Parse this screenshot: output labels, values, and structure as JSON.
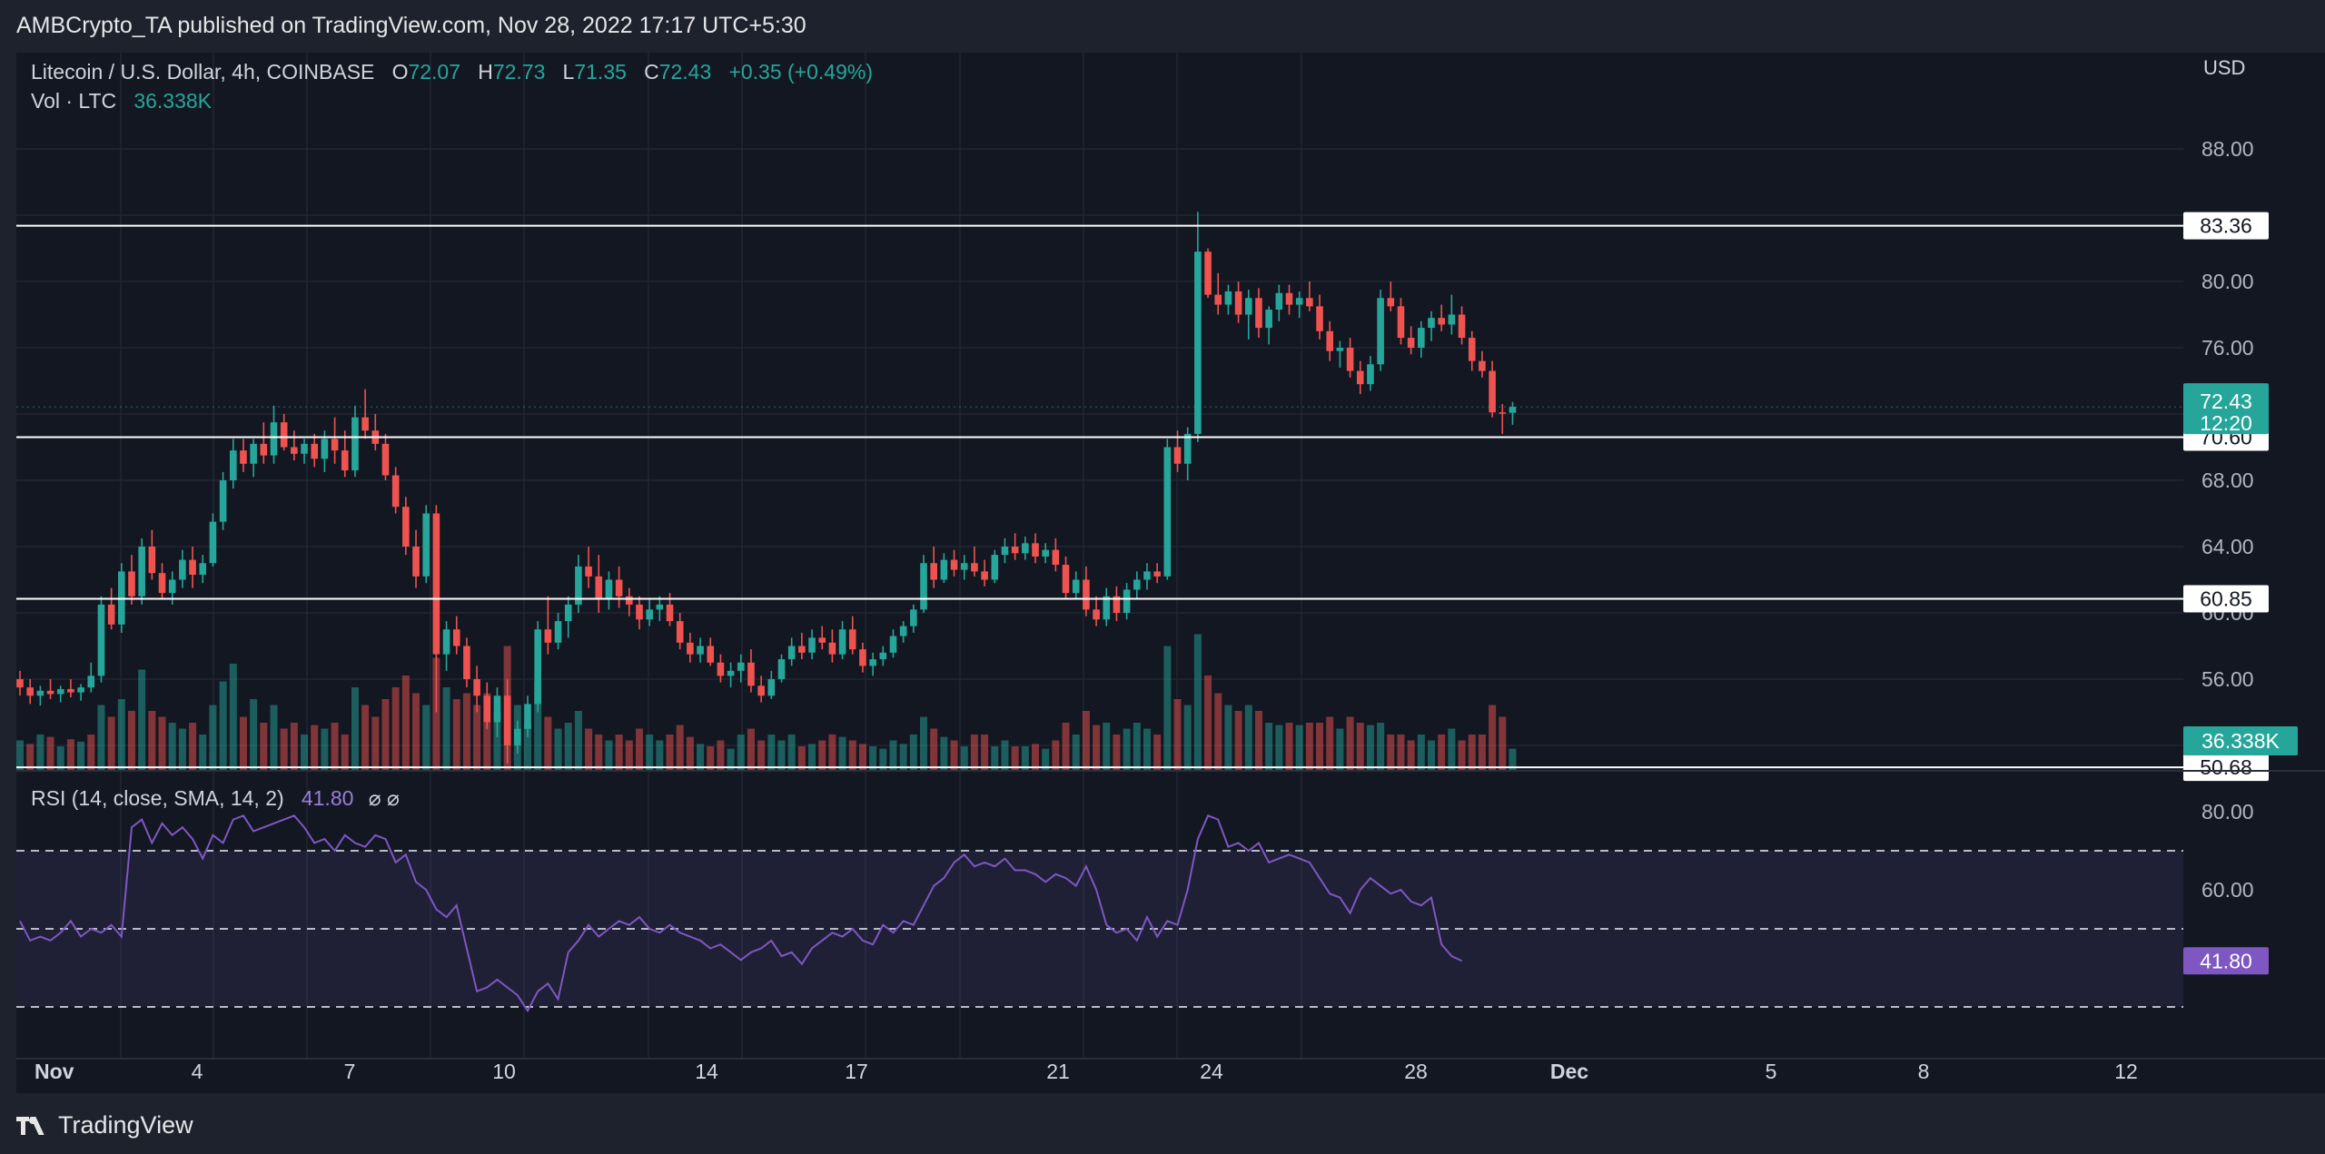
{
  "header": {
    "published_by": "AMBCrypto_TA published on TradingView.com, Nov 28, 2022 17:17 UTC+5:30"
  },
  "legend": {
    "symbol": "Litecoin / U.S. Dollar, 4h, COINBASE",
    "o_label": "O",
    "o_value": "72.07",
    "h_label": "H",
    "h_value": "72.73",
    "l_label": "L",
    "l_value": "71.35",
    "c_label": "C",
    "c_value": "72.43",
    "change": "+0.35 (+0.49%)",
    "vol_label": "Vol · LTC",
    "vol_value": "36.338K",
    "rsi_label": "RSI (14, close, SMA, 14, 2)",
    "rsi_value": "41.80",
    "rsi_icons": "⌀ ⌀"
  },
  "price_axis": {
    "currency": "USD",
    "ticks": [
      "88.00",
      "80.00",
      "76.00",
      "68.00",
      "64.00",
      "60.00",
      "56.00"
    ],
    "tags": {
      "last_price": "72.43",
      "countdown": "12:20",
      "volume": "36.338K",
      "rsi": "41.80"
    }
  },
  "rsi_axis": {
    "ticks": [
      "80.00",
      "60.00"
    ]
  },
  "time_axis": {
    "labels": [
      "Nov",
      "4",
      "7",
      "10",
      "14",
      "17",
      "21",
      "24",
      "28",
      "Dec",
      "5",
      "8",
      "12"
    ]
  },
  "colors": {
    "up": "#26a69a",
    "down": "#ef5350",
    "rsi_line": "#7e57c2",
    "rsi_band": "#7e57c2",
    "background": "#131722"
  },
  "footer": {
    "brand": "TradingView"
  },
  "chart_data": {
    "type": "candlestick",
    "symbol": "LTC/USD",
    "timeframe": "4h",
    "ylim": [
      50,
      92
    ],
    "horizontal_levels": [
      83.36,
      70.6,
      60.85,
      50.68
    ],
    "level_labels": [
      "83.36",
      "70.60",
      "60.85",
      "50.68"
    ],
    "x_dates": [
      "Nov",
      "4",
      "7",
      "10",
      "14",
      "17",
      "21",
      "24",
      "28"
    ],
    "candles": [
      [
        56,
        56.5,
        55,
        55.5
      ],
      [
        55.5,
        56,
        54.5,
        55
      ],
      [
        55,
        55.6,
        54.4,
        55.3
      ],
      [
        55.3,
        56,
        54.8,
        55.1
      ],
      [
        55.1,
        55.6,
        54.6,
        55.4
      ],
      [
        55.4,
        56,
        54.9,
        55.2
      ],
      [
        55.2,
        55.7,
        54.7,
        55.5
      ],
      [
        55.5,
        57,
        55.2,
        56.2
      ],
      [
        56.2,
        61,
        55.8,
        60.5
      ],
      [
        60.5,
        61.5,
        59,
        59.3
      ],
      [
        59.3,
        63,
        58.8,
        62.5
      ],
      [
        62.5,
        63.5,
        60.5,
        61
      ],
      [
        61,
        64.5,
        60.5,
        64
      ],
      [
        64,
        65,
        62,
        62.4
      ],
      [
        62.4,
        63,
        60.8,
        61.2
      ],
      [
        61.2,
        62.5,
        60.5,
        62
      ],
      [
        62,
        63.8,
        61.5,
        63.2
      ],
      [
        63.2,
        64,
        61.5,
        62.3
      ],
      [
        62.3,
        63.5,
        61.8,
        63
      ],
      [
        63,
        66,
        62.8,
        65.5
      ],
      [
        65.5,
        68.5,
        65,
        68
      ],
      [
        68,
        70.5,
        67.5,
        69.8
      ],
      [
        69.8,
        70.5,
        68.5,
        69
      ],
      [
        69,
        70.5,
        68.2,
        70.2
      ],
      [
        70.2,
        71.5,
        69,
        69.5
      ],
      [
        69.5,
        72.5,
        69,
        71.5
      ],
      [
        71.5,
        72,
        69.8,
        70
      ],
      [
        70,
        71,
        69.2,
        69.6
      ],
      [
        69.6,
        70.5,
        69,
        70.2
      ],
      [
        70.2,
        70.8,
        68.8,
        69.3
      ],
      [
        69.3,
        71,
        68.5,
        70.5
      ],
      [
        70.5,
        71.8,
        69,
        69.8
      ],
      [
        69.8,
        71,
        68.2,
        68.6
      ],
      [
        68.6,
        72.5,
        68.2,
        71.8
      ],
      [
        71.8,
        73.5,
        70.5,
        71
      ],
      [
        71,
        72,
        69.8,
        70.2
      ],
      [
        70.2,
        70.8,
        68,
        68.3
      ],
      [
        68.3,
        68.8,
        66,
        66.4
      ],
      [
        66.4,
        67,
        63.5,
        64
      ],
      [
        64,
        65,
        61.5,
        62.2
      ],
      [
        62.2,
        66.5,
        61.8,
        66
      ],
      [
        66,
        66.5,
        54,
        57.5
      ],
      [
        57.5,
        59.5,
        56.5,
        59
      ],
      [
        59,
        59.8,
        57.5,
        58
      ],
      [
        58,
        58.5,
        55.5,
        56
      ],
      [
        56,
        56.8,
        54,
        55
      ],
      [
        55,
        55.8,
        53,
        53.4
      ],
      [
        53.4,
        55.5,
        52.5,
        55
      ],
      [
        55,
        56,
        50.9,
        52
      ],
      [
        52,
        53.5,
        51.5,
        53
      ],
      [
        53,
        55,
        52.5,
        54.5
      ],
      [
        54.5,
        59.5,
        54,
        59
      ],
      [
        59,
        61,
        57.5,
        58.2
      ],
      [
        58.2,
        60,
        57.8,
        59.5
      ],
      [
        59.5,
        61,
        58.5,
        60.5
      ],
      [
        60.5,
        63.5,
        60,
        62.8
      ],
      [
        62.8,
        64,
        61.5,
        62.2
      ],
      [
        62.2,
        63.5,
        60,
        60.8
      ],
      [
        60.8,
        62.5,
        60.2,
        62
      ],
      [
        62,
        62.8,
        60.3,
        61
      ],
      [
        61,
        61.5,
        59.8,
        60.5
      ],
      [
        60.5,
        61,
        59,
        59.6
      ],
      [
        59.6,
        60.8,
        59.2,
        60.2
      ],
      [
        60.2,
        61,
        59.5,
        60.5
      ],
      [
        60.5,
        61.2,
        59.2,
        59.5
      ],
      [
        59.5,
        60,
        57.8,
        58.2
      ],
      [
        58.2,
        58.8,
        57,
        57.5
      ],
      [
        57.5,
        58.5,
        57,
        58
      ],
      [
        58,
        58.5,
        56.8,
        57
      ],
      [
        57,
        57.5,
        55.8,
        56.2
      ],
      [
        56.2,
        57,
        55.5,
        56.5
      ],
      [
        56.5,
        57.5,
        55.8,
        57
      ],
      [
        57,
        57.8,
        55.2,
        55.6
      ],
      [
        55.6,
        56.2,
        54.6,
        55
      ],
      [
        55,
        56.5,
        54.8,
        56
      ],
      [
        56,
        57.5,
        55.8,
        57.2
      ],
      [
        57.2,
        58.5,
        56.8,
        58
      ],
      [
        58,
        58.8,
        57.2,
        57.6
      ],
      [
        57.6,
        59,
        57.2,
        58.5
      ],
      [
        58.5,
        59.2,
        57.8,
        58.2
      ],
      [
        58.2,
        59,
        57,
        57.5
      ],
      [
        57.5,
        59.5,
        57.2,
        59
      ],
      [
        59,
        59.8,
        57.5,
        57.8
      ],
      [
        57.8,
        58.2,
        56.4,
        56.8
      ],
      [
        56.8,
        57.6,
        56.2,
        57.2
      ],
      [
        57.2,
        58,
        56.8,
        57.6
      ],
      [
        57.6,
        59,
        57.3,
        58.6
      ],
      [
        58.6,
        59.5,
        58.2,
        59.2
      ],
      [
        59.2,
        60.5,
        58.8,
        60.2
      ],
      [
        60.2,
        63.5,
        60,
        63
      ],
      [
        63,
        64,
        61.5,
        62
      ],
      [
        62,
        63.6,
        61.8,
        63.2
      ],
      [
        63.2,
        63.8,
        62.2,
        62.6
      ],
      [
        62.6,
        63.5,
        62,
        63
      ],
      [
        63,
        64,
        62.2,
        62.5
      ],
      [
        62.5,
        63.2,
        61.6,
        62
      ],
      [
        62,
        63.8,
        61.8,
        63.5
      ],
      [
        63.5,
        64.5,
        63,
        64
      ],
      [
        64,
        64.8,
        63.2,
        63.6
      ],
      [
        63.6,
        64.6,
        63.2,
        64.2
      ],
      [
        64.2,
        64.8,
        63,
        63.4
      ],
      [
        63.4,
        64.2,
        63,
        63.8
      ],
      [
        63.8,
        64.5,
        62.5,
        62.9
      ],
      [
        62.9,
        63.4,
        60.8,
        61.2
      ],
      [
        61.2,
        62.5,
        60.8,
        62
      ],
      [
        62,
        62.8,
        59.8,
        60.2
      ],
      [
        60.2,
        61,
        59.2,
        59.6
      ],
      [
        59.6,
        61.5,
        59.2,
        61
      ],
      [
        61,
        61.6,
        59.5,
        60
      ],
      [
        60,
        61.8,
        59.6,
        61.4
      ],
      [
        61.4,
        62.5,
        60.8,
        62
      ],
      [
        62,
        63,
        61.4,
        62.5
      ],
      [
        62.5,
        63,
        61.8,
        62.2
      ],
      [
        62.2,
        70.5,
        62,
        70
      ],
      [
        70,
        71,
        68.5,
        69
      ],
      [
        69,
        71.2,
        68,
        70.8
      ],
      [
        70.8,
        84.2,
        70.3,
        81.8
      ],
      [
        81.8,
        82,
        79,
        79.2
      ],
      [
        79.2,
        80.5,
        78,
        78.6
      ],
      [
        78.6,
        79.8,
        78,
        79.4
      ],
      [
        79.4,
        80,
        77.5,
        78
      ],
      [
        78,
        79.5,
        76.5,
        79
      ],
      [
        79,
        79.6,
        76.6,
        77.2
      ],
      [
        77.2,
        78.5,
        76.2,
        78.3
      ],
      [
        78.3,
        79.8,
        77.6,
        79.3
      ],
      [
        79.3,
        79.8,
        78,
        78.6
      ],
      [
        78.6,
        79.4,
        77.8,
        79
      ],
      [
        79,
        80,
        78.2,
        78.5
      ],
      [
        78.5,
        79.2,
        76.5,
        77
      ],
      [
        77,
        77.6,
        75.2,
        75.8
      ],
      [
        75.8,
        76.4,
        74.8,
        76
      ],
      [
        76,
        76.6,
        74.2,
        74.6
      ],
      [
        74.6,
        75.2,
        73.2,
        73.8
      ],
      [
        73.8,
        75.5,
        73.4,
        75
      ],
      [
        75,
        79.5,
        74.6,
        79
      ],
      [
        79,
        80,
        78.2,
        78.5
      ],
      [
        78.5,
        79,
        76.2,
        76.6
      ],
      [
        76.6,
        77.3,
        75.6,
        76
      ],
      [
        76,
        77.6,
        75.4,
        77.2
      ],
      [
        77.2,
        78.2,
        76.4,
        77.8
      ],
      [
        77.8,
        78.6,
        77,
        77.4
      ],
      [
        77.4,
        79.2,
        76.8,
        78
      ],
      [
        78,
        78.5,
        76.2,
        76.6
      ],
      [
        76.6,
        77,
        74.6,
        75.2
      ],
      [
        75.2,
        75.8,
        74.2,
        74.6
      ],
      [
        74.6,
        75.2,
        71.8,
        72.1
      ],
      [
        72.1,
        72.6,
        70.8,
        72.07
      ],
      [
        72.07,
        72.73,
        71.35,
        72.43
      ]
    ],
    "volume_bars": [
      [
        0.25,
        1
      ],
      [
        0.22,
        0
      ],
      [
        0.3,
        1
      ],
      [
        0.28,
        0
      ],
      [
        0.2,
        1
      ],
      [
        0.26,
        0
      ],
      [
        0.24,
        1
      ],
      [
        0.3,
        0
      ],
      [
        0.55,
        1
      ],
      [
        0.45,
        0
      ],
      [
        0.6,
        1
      ],
      [
        0.5,
        0
      ],
      [
        0.85,
        1
      ],
      [
        0.5,
        0
      ],
      [
        0.45,
        0
      ],
      [
        0.4,
        1
      ],
      [
        0.35,
        1
      ],
      [
        0.4,
        0
      ],
      [
        0.3,
        1
      ],
      [
        0.55,
        1
      ],
      [
        0.75,
        1
      ],
      [
        0.9,
        1
      ],
      [
        0.45,
        0
      ],
      [
        0.6,
        1
      ],
      [
        0.4,
        0
      ],
      [
        0.55,
        1
      ],
      [
        0.35,
        0
      ],
      [
        0.4,
        0
      ],
      [
        0.3,
        1
      ],
      [
        0.38,
        0
      ],
      [
        0.35,
        1
      ],
      [
        0.4,
        0
      ],
      [
        0.3,
        0
      ],
      [
        0.7,
        1
      ],
      [
        0.55,
        0
      ],
      [
        0.45,
        0
      ],
      [
        0.6,
        0
      ],
      [
        0.7,
        0
      ],
      [
        0.8,
        0
      ],
      [
        0.65,
        0
      ],
      [
        0.55,
        1
      ],
      [
        0.95,
        0
      ],
      [
        0.7,
        1
      ],
      [
        0.6,
        0
      ],
      [
        0.65,
        0
      ],
      [
        0.55,
        0
      ],
      [
        0.65,
        0
      ],
      [
        0.5,
        1
      ],
      [
        1.05,
        0
      ],
      [
        0.55,
        1
      ],
      [
        0.4,
        1
      ],
      [
        0.75,
        1
      ],
      [
        0.45,
        0
      ],
      [
        0.35,
        1
      ],
      [
        0.4,
        1
      ],
      [
        0.5,
        1
      ],
      [
        0.35,
        0
      ],
      [
        0.3,
        0
      ],
      [
        0.25,
        1
      ],
      [
        0.3,
        0
      ],
      [
        0.25,
        0
      ],
      [
        0.35,
        0
      ],
      [
        0.3,
        1
      ],
      [
        0.25,
        1
      ],
      [
        0.3,
        0
      ],
      [
        0.38,
        0
      ],
      [
        0.28,
        0
      ],
      [
        0.22,
        1
      ],
      [
        0.2,
        0
      ],
      [
        0.25,
        0
      ],
      [
        0.18,
        1
      ],
      [
        0.3,
        1
      ],
      [
        0.35,
        0
      ],
      [
        0.25,
        0
      ],
      [
        0.3,
        1
      ],
      [
        0.25,
        1
      ],
      [
        0.3,
        1
      ],
      [
        0.2,
        0
      ],
      [
        0.22,
        1
      ],
      [
        0.25,
        0
      ],
      [
        0.3,
        0
      ],
      [
        0.28,
        1
      ],
      [
        0.25,
        0
      ],
      [
        0.22,
        0
      ],
      [
        0.2,
        1
      ],
      [
        0.18,
        1
      ],
      [
        0.25,
        1
      ],
      [
        0.22,
        1
      ],
      [
        0.3,
        1
      ],
      [
        0.45,
        1
      ],
      [
        0.35,
        0
      ],
      [
        0.28,
        1
      ],
      [
        0.25,
        0
      ],
      [
        0.2,
        1
      ],
      [
        0.3,
        0
      ],
      [
        0.3,
        0
      ],
      [
        0.2,
        1
      ],
      [
        0.25,
        1
      ],
      [
        0.2,
        0
      ],
      [
        0.2,
        1
      ],
      [
        0.22,
        0
      ],
      [
        0.18,
        1
      ],
      [
        0.25,
        0
      ],
      [
        0.4,
        0
      ],
      [
        0.3,
        1
      ],
      [
        0.5,
        0
      ],
      [
        0.38,
        0
      ],
      [
        0.4,
        1
      ],
      [
        0.3,
        0
      ],
      [
        0.35,
        1
      ],
      [
        0.4,
        1
      ],
      [
        0.35,
        1
      ],
      [
        0.3,
        0
      ],
      [
        1.05,
        1
      ],
      [
        0.6,
        0
      ],
      [
        0.55,
        1
      ],
      [
        1.15,
        1
      ],
      [
        0.8,
        0
      ],
      [
        0.65,
        0
      ],
      [
        0.55,
        1
      ],
      [
        0.5,
        0
      ],
      [
        0.55,
        1
      ],
      [
        0.5,
        0
      ],
      [
        0.4,
        1
      ],
      [
        0.38,
        1
      ],
      [
        0.4,
        0
      ],
      [
        0.38,
        1
      ],
      [
        0.4,
        0
      ],
      [
        0.4,
        0
      ],
      [
        0.45,
        0
      ],
      [
        0.35,
        1
      ],
      [
        0.45,
        0
      ],
      [
        0.4,
        0
      ],
      [
        0.38,
        1
      ],
      [
        0.4,
        1
      ],
      [
        0.3,
        0
      ],
      [
        0.3,
        0
      ],
      [
        0.25,
        0
      ],
      [
        0.3,
        1
      ],
      [
        0.25,
        1
      ],
      [
        0.3,
        0
      ],
      [
        0.35,
        1
      ],
      [
        0.25,
        0
      ],
      [
        0.3,
        0
      ],
      [
        0.3,
        0
      ],
      [
        0.55,
        0
      ],
      [
        0.45,
        0
      ],
      [
        0.18,
        1
      ]
    ],
    "rsi_levels": [
      70,
      50,
      30
    ],
    "rsi": [
      52,
      47,
      48,
      47,
      49,
      52,
      48,
      50,
      49,
      51,
      48,
      76,
      78,
      72,
      77,
      74,
      76,
      73,
      68,
      74,
      72,
      78,
      79,
      75,
      76,
      77,
      78,
      79,
      76,
      72,
      73,
      70,
      74,
      72,
      71,
      74,
      73,
      67,
      69,
      62,
      60,
      55,
      53,
      56,
      45,
      34,
      35,
      37,
      35,
      33,
      29,
      34,
      36,
      32,
      44,
      47,
      51,
      48,
      50,
      52,
      51,
      53,
      50,
      49,
      51,
      49,
      48,
      47,
      45,
      46,
      44,
      42,
      44,
      45,
      47,
      43,
      44,
      41,
      45,
      47,
      49,
      48,
      50,
      47,
      46,
      51,
      49,
      52,
      51,
      56,
      61,
      63,
      67,
      69,
      66,
      67,
      66,
      68,
      65,
      65,
      64,
      62,
      64,
      63,
      61,
      66,
      60,
      51,
      49,
      50,
      47,
      53,
      48,
      52,
      51,
      60,
      73,
      79,
      78,
      71,
      72,
      70,
      72,
      67,
      68,
      69,
      68,
      67,
      63,
      59,
      58,
      54,
      60,
      63,
      61,
      59,
      60,
      57,
      56,
      58,
      46,
      43,
      41.8
    ]
  }
}
